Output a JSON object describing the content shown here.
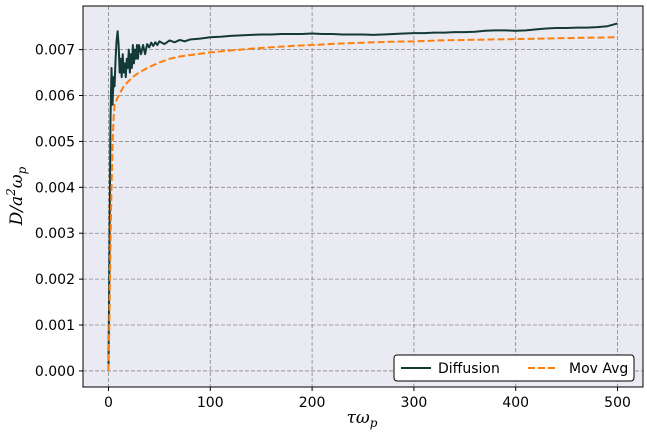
{
  "chart_data": {
    "type": "line",
    "title": "",
    "xlabel": "τω",
    "xlabel_sub": "p",
    "ylabel": "D/a",
    "ylabel_sup": "2",
    "ylabel_tail": "ω",
    "ylabel_sub": "p",
    "xlim": [
      -25,
      525
    ],
    "ylim": [
      -0.00035,
      0.00795
    ],
    "xticks": [
      0,
      100,
      200,
      300,
      400,
      500
    ],
    "xtick_labels": [
      "0",
      "100",
      "200",
      "300",
      "400",
      "500"
    ],
    "yticks": [
      0.0,
      0.001,
      0.002,
      0.003,
      0.004,
      0.005,
      0.006,
      0.007
    ],
    "ytick_labels": [
      "0.000",
      "0.001",
      "0.002",
      "0.003",
      "0.004",
      "0.005",
      "0.006",
      "0.007"
    ],
    "grid": true,
    "legend_position": "lower-right",
    "colors": {
      "plot_bg": "#eaeaf2",
      "grid": "#888888",
      "diffusion": "#133a37",
      "movavg": "#ff7f0e"
    },
    "series": [
      {
        "name": "Diffusion",
        "style": "solid",
        "x": [
          0,
          1,
          2,
          3,
          4,
          5,
          6,
          7,
          8,
          9,
          10,
          11,
          12,
          13,
          14,
          15,
          16,
          17,
          18,
          19,
          20,
          21,
          22,
          23,
          24,
          25,
          26,
          27,
          28,
          29,
          30,
          32,
          34,
          36,
          38,
          40,
          42,
          44,
          46,
          48,
          50,
          55,
          60,
          65,
          70,
          75,
          80,
          90,
          100,
          110,
          120,
          130,
          140,
          150,
          160,
          170,
          180,
          190,
          200,
          210,
          220,
          230,
          240,
          250,
          260,
          270,
          280,
          290,
          300,
          310,
          320,
          330,
          340,
          350,
          360,
          370,
          380,
          390,
          400,
          410,
          420,
          430,
          440,
          450,
          460,
          470,
          480,
          490,
          500
        ],
        "y": [
          0.0,
          0.0025,
          0.0055,
          0.0066,
          0.0058,
          0.0064,
          0.0062,
          0.0068,
          0.0072,
          0.0074,
          0.0071,
          0.0065,
          0.0068,
          0.0064,
          0.0069,
          0.0065,
          0.0067,
          0.0064,
          0.0068,
          0.0066,
          0.007,
          0.0065,
          0.0069,
          0.0066,
          0.0071,
          0.0067,
          0.007,
          0.0068,
          0.0071,
          0.0068,
          0.0071,
          0.0069,
          0.0071,
          0.0069,
          0.00712,
          0.00705,
          0.00715,
          0.00708,
          0.00716,
          0.0071,
          0.00718,
          0.00712,
          0.0072,
          0.00716,
          0.00721,
          0.00718,
          0.00722,
          0.00724,
          0.00727,
          0.00728,
          0.0073,
          0.00731,
          0.00732,
          0.00733,
          0.00733,
          0.00734,
          0.00734,
          0.00734,
          0.00735,
          0.00734,
          0.00734,
          0.00733,
          0.00733,
          0.00733,
          0.00732,
          0.00733,
          0.00734,
          0.00735,
          0.00736,
          0.00736,
          0.00737,
          0.00737,
          0.00738,
          0.00738,
          0.00739,
          0.00741,
          0.00742,
          0.00742,
          0.00741,
          0.00742,
          0.00744,
          0.00746,
          0.00747,
          0.00747,
          0.00748,
          0.00748,
          0.00749,
          0.00751,
          0.00757
        ]
      },
      {
        "name": "Mov Avg",
        "style": "dashed",
        "x": [
          0,
          1,
          2,
          3,
          4,
          5,
          6,
          8,
          10,
          15,
          20,
          25,
          30,
          40,
          50,
          60,
          70,
          80,
          100,
          120,
          140,
          160,
          180,
          200,
          225,
          250,
          275,
          300,
          325,
          350,
          375,
          400,
          425,
          450,
          475,
          500
        ],
        "y": [
          0.0,
          0.0012,
          0.0028,
          0.004,
          0.0049,
          0.0055,
          0.0058,
          0.0059,
          0.006,
          0.0062,
          0.00632,
          0.00642,
          0.0065,
          0.00662,
          0.00672,
          0.0068,
          0.00685,
          0.00688,
          0.00694,
          0.00698,
          0.00702,
          0.00705,
          0.00708,
          0.0071,
          0.00713,
          0.00715,
          0.00717,
          0.00718,
          0.0072,
          0.00721,
          0.00722,
          0.00723,
          0.00724,
          0.00725,
          0.00726,
          0.00727
        ]
      }
    ]
  }
}
